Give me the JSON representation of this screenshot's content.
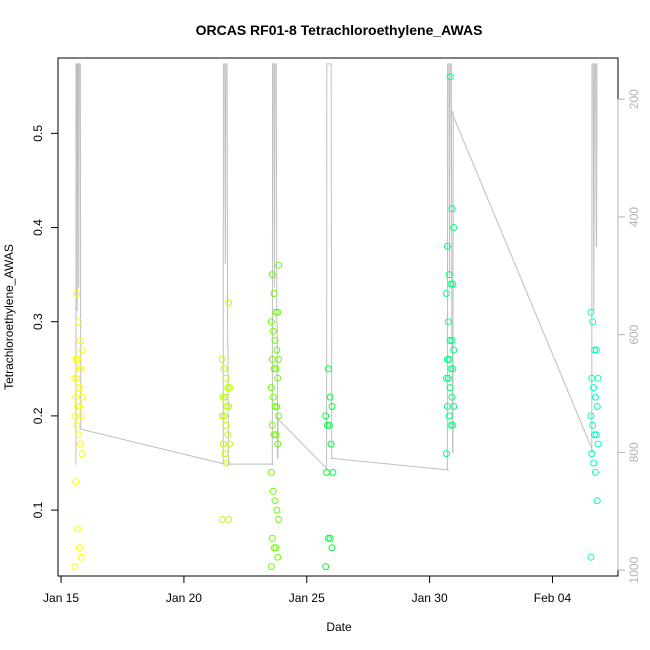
{
  "chart_data": {
    "type": "scatter",
    "title": "ORCAS RF01-8 Tetrachloroethylene_AWAS",
    "xlabel": "Date",
    "ylabel": "Tetrachloroethylene_AWAS",
    "x_ticks": [
      "Jan 15",
      "Jan 20",
      "Jan 25",
      "Jan 30",
      "Feb 04"
    ],
    "y_ticks": [
      "0.1",
      "0.2",
      "0.3",
      "0.4",
      "0.5"
    ],
    "y2_ticks": [
      "200",
      "400",
      "600",
      "800",
      "1000"
    ],
    "xlim": [
      "2016-01-14T21:00",
      "2016-02-06T16:00"
    ],
    "ylim": [
      0.03,
      0.58
    ],
    "y2lim": [
      1010,
      130
    ],
    "grid": false,
    "marker": "open-circle",
    "secondary_line_color": "#bebebe",
    "secondary_axis_color": "#b3b3b3",
    "flights": [
      {
        "t": "2016-01-15T17:00",
        "color": "#ffff00",
        "values": [
          0.04,
          0.05,
          0.06,
          0.08,
          0.13,
          0.16,
          0.17,
          0.18,
          0.19,
          0.2,
          0.2,
          0.21,
          0.21,
          0.22,
          0.22,
          0.23,
          0.23,
          0.24,
          0.24,
          0.25,
          0.25,
          0.26,
          0.26,
          0.27,
          0.28,
          0.3,
          0.33
        ],
        "pressure": [
          [
            0,
            820
          ],
          [
            0.08,
            820
          ],
          [
            0.1,
            140
          ],
          [
            0.25,
            140
          ],
          [
            0.3,
            560
          ],
          [
            0.35,
            140
          ],
          [
            0.5,
            140
          ],
          [
            0.55,
            520
          ],
          [
            0.62,
            140
          ],
          [
            0.8,
            140
          ],
          [
            0.88,
            760
          ],
          [
            1,
            760
          ]
        ]
      },
      {
        "t": "2016-01-21T17:00",
        "color": "#bfff00",
        "values": [
          0.09,
          0.09,
          0.15,
          0.16,
          0.17,
          0.17,
          0.18,
          0.19,
          0.2,
          0.2,
          0.21,
          0.21,
          0.22,
          0.22,
          0.23,
          0.23,
          0.24,
          0.25,
          0.26,
          0.32
        ],
        "pressure": [
          [
            0,
            820
          ],
          [
            0.06,
            820
          ],
          [
            0.1,
            140
          ],
          [
            0.3,
            140
          ],
          [
            0.4,
            480
          ],
          [
            0.5,
            140
          ],
          [
            0.7,
            140
          ],
          [
            0.78,
            620
          ],
          [
            0.85,
            620
          ],
          [
            0.9,
            820
          ],
          [
            1,
            820
          ]
        ]
      },
      {
        "t": "2016-01-23T17:00",
        "color": "#6aff00",
        "values": [
          0.04,
          0.05,
          0.06,
          0.06,
          0.07,
          0.09,
          0.1,
          0.11,
          0.12,
          0.14,
          0.17,
          0.18,
          0.18,
          0.19,
          0.2,
          0.21,
          0.21,
          0.22,
          0.23,
          0.24,
          0.25,
          0.25,
          0.26,
          0.26,
          0.27,
          0.28,
          0.29,
          0.3,
          0.31,
          0.31,
          0.33,
          0.35,
          0.36
        ],
        "pressure": [
          [
            0,
            820
          ],
          [
            0.06,
            820
          ],
          [
            0.1,
            140
          ],
          [
            0.3,
            140
          ],
          [
            0.4,
            520
          ],
          [
            0.5,
            140
          ],
          [
            0.7,
            140
          ],
          [
            0.78,
            580
          ],
          [
            0.85,
            580
          ],
          [
            0.9,
            810
          ],
          [
            0.95,
            810
          ],
          [
            1,
            740
          ]
        ]
      },
      {
        "t": "2016-01-25T22:00",
        "color": "#00ff40",
        "values": [
          0.04,
          0.06,
          0.07,
          0.07,
          0.14,
          0.14,
          0.17,
          0.19,
          0.19,
          0.2,
          0.21,
          0.22,
          0.25
        ],
        "pressure": [
          [
            0,
            830
          ],
          [
            0.06,
            810
          ],
          [
            0.1,
            140
          ],
          [
            0.25,
            140
          ],
          [
            0.5,
            140
          ],
          [
            0.8,
            140
          ],
          [
            0.9,
            810
          ],
          [
            1,
            810
          ]
        ]
      },
      {
        "t": "2016-01-30T20:00",
        "color": "#00ff80",
        "values": [
          0.16,
          0.19,
          0.19,
          0.2,
          0.21,
          0.21,
          0.22,
          0.23,
          0.24,
          0.24,
          0.25,
          0.25,
          0.26,
          0.26,
          0.27,
          0.28,
          0.28,
          0.3,
          0.33,
          0.34,
          0.34,
          0.35,
          0.38,
          0.4,
          0.42,
          0.56
        ],
        "pressure": [
          [
            0,
            830
          ],
          [
            0.06,
            830
          ],
          [
            0.1,
            140
          ],
          [
            0.3,
            140
          ],
          [
            0.4,
            500
          ],
          [
            0.5,
            140
          ],
          [
            0.7,
            140
          ],
          [
            0.8,
            620
          ],
          [
            0.85,
            620
          ],
          [
            0.9,
            800
          ],
          [
            0.95,
            800
          ],
          [
            1,
            220
          ]
        ]
      },
      {
        "t": "2016-02-05T17:00",
        "color": "#00ffc0",
        "values": [
          0.05,
          0.11,
          0.14,
          0.15,
          0.16,
          0.17,
          0.18,
          0.18,
          0.19,
          0.2,
          0.21,
          0.22,
          0.23,
          0.24,
          0.24,
          0.27,
          0.27,
          0.3,
          0.31
        ],
        "pressure": [
          [
            0,
            800
          ],
          [
            0.06,
            800
          ],
          [
            0.1,
            140
          ],
          [
            0.3,
            140
          ],
          [
            0.4,
            560
          ],
          [
            0.5,
            140
          ],
          [
            0.7,
            140
          ],
          [
            0.8,
            450
          ],
          [
            0.85,
            450
          ],
          [
            0.9,
            140
          ],
          [
            1,
            140
          ]
        ]
      }
    ],
    "pressure_links": [
      [
        "2016-01-15T18:00",
        760,
        "2016-01-21T16:00",
        820
      ],
      [
        "2016-01-21T18:00",
        820,
        "2016-01-23T16:00",
        820
      ],
      [
        "2016-01-23T18:00",
        740,
        "2016-01-25T21:00",
        830
      ],
      [
        "2016-01-25T23:00",
        810,
        "2016-01-30T19:00",
        830
      ],
      [
        "2016-01-30T21:00",
        220,
        "2016-02-05T16:00",
        800
      ]
    ]
  }
}
